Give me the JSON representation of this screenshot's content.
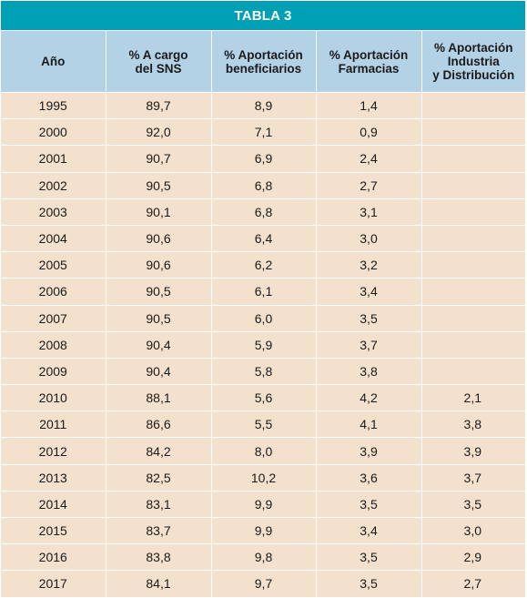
{
  "title": "TABLA 3",
  "columns": [
    "Año",
    "% A cargo\ndel SNS",
    "% Aportación\nbeneficiarios",
    "% Aportación\nFarmacias",
    "% Aportación\nIndustria\ny Distribución"
  ],
  "rows": [
    [
      "1995",
      "89,7",
      "8,9",
      "1,4",
      ""
    ],
    [
      "2000",
      "92,0",
      "7,1",
      "0,9",
      ""
    ],
    [
      "2001",
      "90,7",
      "6,9",
      "2,4",
      ""
    ],
    [
      "2002",
      "90,5",
      "6,8",
      "2,7",
      ""
    ],
    [
      "2003",
      "90,1",
      "6,8",
      "3,1",
      ""
    ],
    [
      "2004",
      "90,6",
      "6,4",
      "3,0",
      ""
    ],
    [
      "2005",
      "90,6",
      "6,2",
      "3,2",
      ""
    ],
    [
      "2006",
      "90,5",
      "6,1",
      "3,4",
      ""
    ],
    [
      "2007",
      "90,5",
      "6,0",
      "3,5",
      ""
    ],
    [
      "2008",
      "90,4",
      "5,9",
      "3,7",
      ""
    ],
    [
      "2009",
      "90,4",
      "5,8",
      "3,8",
      ""
    ],
    [
      "2010",
      "88,1",
      "5,6",
      "4,2",
      "2,1"
    ],
    [
      "2011",
      "86,6",
      "5,5",
      "4,1",
      "3,8"
    ],
    [
      "2012",
      "84,2",
      "8,0",
      "3,9",
      "3,9"
    ],
    [
      "2013",
      "82,5",
      "10,2",
      "3,6",
      "3,7"
    ],
    [
      "2014",
      "83,1",
      "9,9",
      "3,5",
      "3,5"
    ],
    [
      "2015",
      "83,7",
      "9,9",
      "3,4",
      "3,0"
    ],
    [
      "2016",
      "83,8",
      "9,8",
      "3,5",
      "2,9"
    ],
    [
      "2017",
      "84,1",
      "9,7",
      "3,5",
      "2,7"
    ]
  ],
  "colors": {
    "title_bg": "#00a0b4",
    "header_bg": "#b4d2e6",
    "row_bg": "#f3e0cd"
  }
}
